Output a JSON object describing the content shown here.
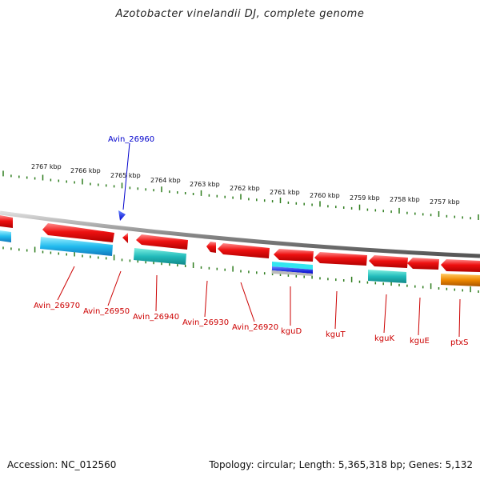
{
  "title": "Azotobacter vinelandii DJ, complete genome",
  "footer": {
    "accession": "Accession: NC_012560",
    "topology": "Topology: circular; Length: 5,365,318 bp; Genes: 5,132"
  },
  "colors": {
    "cds": "#ee1111",
    "cds_highlight": "#ff8888",
    "cds_selected": "#1111dd",
    "gene_cyan": "#22bbcc",
    "gene_teal": "#22aaaa",
    "gene_blue": "#1133cc",
    "gene_orange": "#ee8800",
    "tick": "#2e7d1e",
    "backbone": "#888888",
    "label_red": "#cc0000",
    "label_blue": "#0000cc"
  },
  "kbp_ticks": [
    "2767 kbp",
    "2766 kbp",
    "2765 kbp",
    "2764 kbp",
    "2763 kbp",
    "2762 kbp",
    "2761 kbp",
    "2760 kbp",
    "2759 kbp",
    "2758 kbp",
    "2757 kbp"
  ],
  "top_label": "Avin_26960",
  "gene_labels": [
    "Avin_26970",
    "Avin_26950",
    "Avin_26940",
    "Avin_26930",
    "Avin_26920",
    "kguD",
    "kguT",
    "kguK",
    "kguE",
    "ptxS"
  ]
}
